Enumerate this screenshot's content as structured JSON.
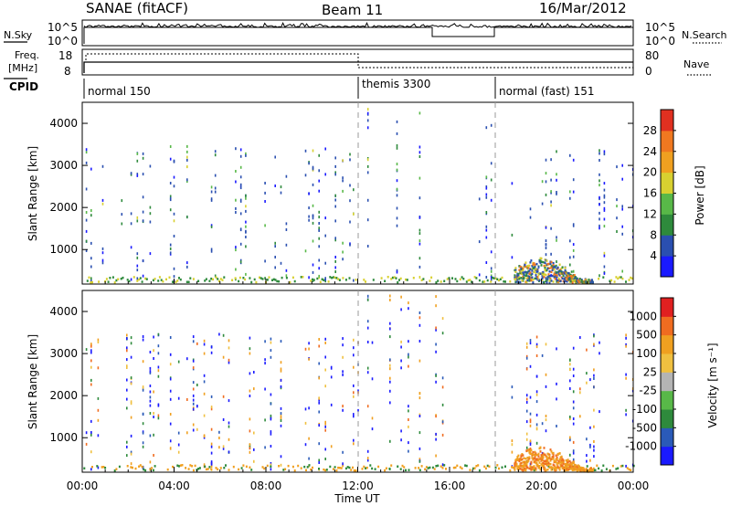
{
  "header": {
    "station": "SANAE (fitACF)",
    "beam": "Beam 11",
    "date": "16/Mar/2012"
  },
  "noise_panel": {
    "left_label": "N.Sky",
    "right_label": "N.Search",
    "tick_top": "10^5",
    "tick_bottom": "10^0"
  },
  "freq_panel": {
    "left_label_1": "Freq.",
    "left_label_2": "[MHz]",
    "right_label": "Nave",
    "left_tick_top": "18",
    "left_tick_bottom": "8",
    "right_tick_top": "80",
    "right_tick_bottom": "0"
  },
  "cpid": {
    "label": "CPID",
    "segments": [
      {
        "label": "normal 150",
        "start_hour": 0
      },
      {
        "label": "themis 3300",
        "start_hour": 12
      },
      {
        "label": "normal (fast) 151",
        "start_hour": 18
      }
    ]
  },
  "chart_data": [
    {
      "type": "heatmap",
      "name": "power",
      "ylabel": "Slant Range [km]",
      "xlabel": "",
      "xlim": [
        0,
        24
      ],
      "ylim": [
        180,
        4500
      ],
      "y_ticks": [
        1000,
        2000,
        3000,
        4000
      ],
      "colorbar": {
        "label": "Power [dB]",
        "ticks": [
          "4",
          "8",
          "12",
          "16",
          "20",
          "24",
          "28"
        ],
        "colors": [
          "#1a1aff",
          "#2a4fb0",
          "#2e8a3c",
          "#58b848",
          "#d8d030",
          "#f0a020",
          "#f07820",
          "#e03020"
        ]
      }
    },
    {
      "type": "heatmap",
      "name": "velocity",
      "ylabel": "Slant Range [km]",
      "xlabel": "Time UT",
      "xlim": [
        0,
        24
      ],
      "ylim": [
        180,
        4500
      ],
      "y_ticks": [
        1000,
        2000,
        3000,
        4000
      ],
      "x_tick_labels": [
        "00:00",
        "04:00",
        "08:00",
        "12:00",
        "16:00",
        "20:00",
        "00:00"
      ],
      "colorbar": {
        "label": "Velocity [m s⁻¹]",
        "ticks": [
          "1000",
          "500",
          "100",
          "25",
          "-25",
          "-100",
          "-500",
          "-1000"
        ],
        "colors": [
          "#1a1aff",
          "#2a5ab8",
          "#2e8a3c",
          "#58b848",
          "#b4b4b4",
          "#f0c040",
          "#f0a020",
          "#f06c20",
          "#e02020"
        ]
      }
    }
  ]
}
